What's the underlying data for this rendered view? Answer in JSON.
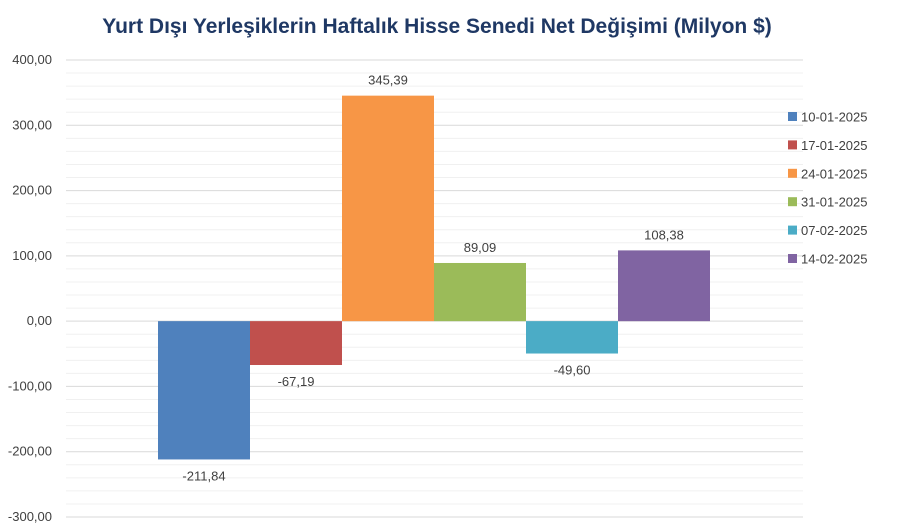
{
  "chart_data": {
    "type": "bar",
    "title": "Yurt Dışı Yerleşiklerin Haftalık Hisse Senedi Net Değişimi (Milyon $)",
    "xlabel": "",
    "ylabel": "",
    "ylim": [
      -300,
      400
    ],
    "yticks": [
      400,
      300,
      200,
      100,
      0,
      -100,
      -200,
      -300
    ],
    "ytick_labels": [
      "400,00",
      "300,00",
      "200,00",
      "100,00",
      "0,00",
      "-100,00",
      "-200,00",
      "-300,00"
    ],
    "grid": true,
    "legend_position": "right",
    "series": [
      {
        "name": "10-01-2025",
        "value": -211.84,
        "label": "-211,84",
        "color": "#4f81bd"
      },
      {
        "name": "17-01-2025",
        "value": -67.19,
        "label": "-67,19",
        "color": "#c0504d"
      },
      {
        "name": "24-01-2025",
        "value": 345.39,
        "label": "345,39",
        "color": "#f79646"
      },
      {
        "name": "31-01-2025",
        "value": 89.09,
        "label": "89,09",
        "color": "#9bbb59"
      },
      {
        "name": "07-02-2025",
        "value": -49.6,
        "label": "-49,60",
        "color": "#4bacc6"
      },
      {
        "name": "14-02-2025",
        "value": 108.38,
        "label": "108,38",
        "color": "#8064a2"
      }
    ]
  }
}
